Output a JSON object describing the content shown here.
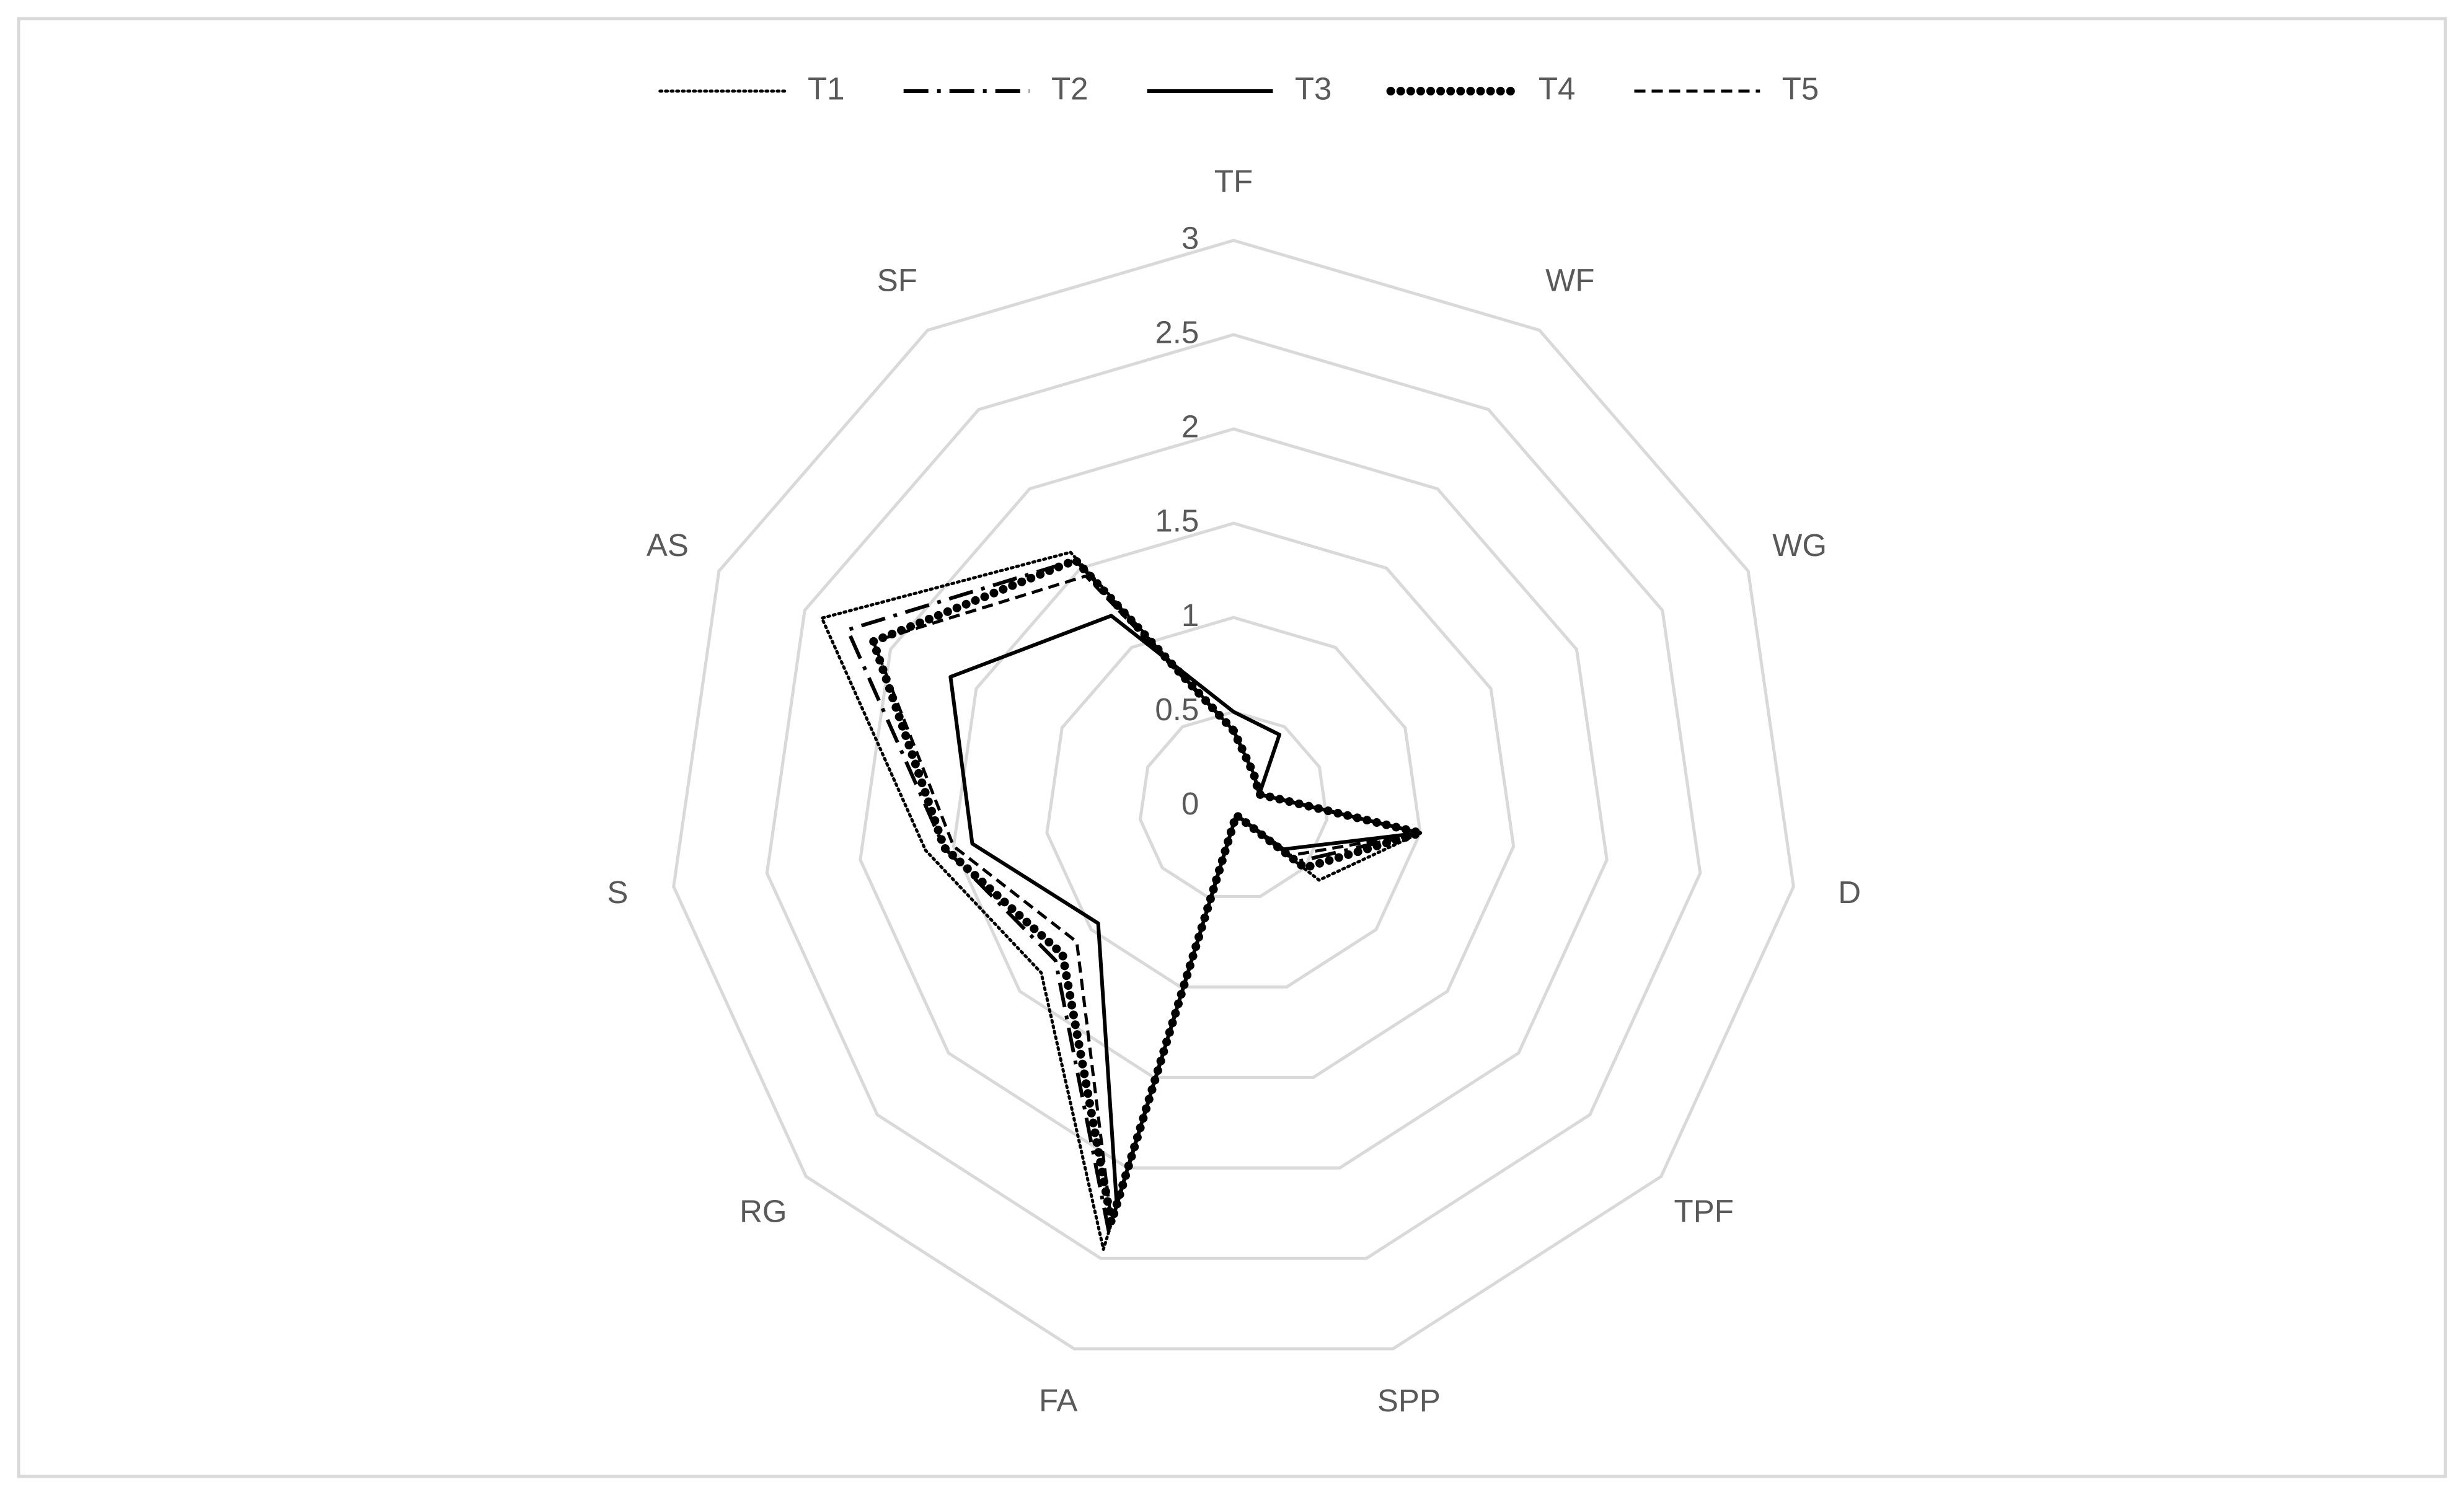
{
  "chart_data": {
    "type": "radar",
    "categories": [
      "TF",
      "WF",
      "WG",
      "D",
      "TPF",
      "SPP",
      "FA",
      "RG",
      "S",
      "AS",
      "SF"
    ],
    "ylim": [
      0,
      3
    ],
    "yticks": [
      0,
      0.5,
      1,
      1.5,
      2,
      2.5,
      3
    ],
    "grid": true,
    "legend": "top",
    "series": [
      {
        "name": "T1",
        "color": "#000000",
        "line_style": "dotted",
        "values": [
          0.4,
          0.2,
          0.15,
          1.0,
          0.6,
          0.05,
          2.45,
          1.35,
          1.65,
          2.4,
          1.6
        ]
      },
      {
        "name": "T2",
        "color": "#000000",
        "line_style": "long-dash-dot",
        "values": [
          0.4,
          0.2,
          0.15,
          1.0,
          0.45,
          0.05,
          2.35,
          1.25,
          1.55,
          2.25,
          1.55
        ]
      },
      {
        "name": "T3",
        "color": "#000000",
        "line_style": "solid",
        "values": [
          0.5,
          0.45,
          0.15,
          1.0,
          0.35,
          0.05,
          2.2,
          0.95,
          1.4,
          1.65,
          1.2
        ]
      },
      {
        "name": "T4",
        "color": "#000000",
        "line_style": "round-dot",
        "values": [
          0.4,
          0.2,
          0.15,
          1.0,
          0.5,
          0.05,
          2.3,
          1.2,
          1.55,
          2.1,
          1.55
        ]
      },
      {
        "name": "T5",
        "color": "#000000",
        "line_style": "dashed",
        "values": [
          0.4,
          0.2,
          0.15,
          1.0,
          0.4,
          0.05,
          2.3,
          1.1,
          1.5,
          2.1,
          1.45
        ]
      }
    ]
  }
}
